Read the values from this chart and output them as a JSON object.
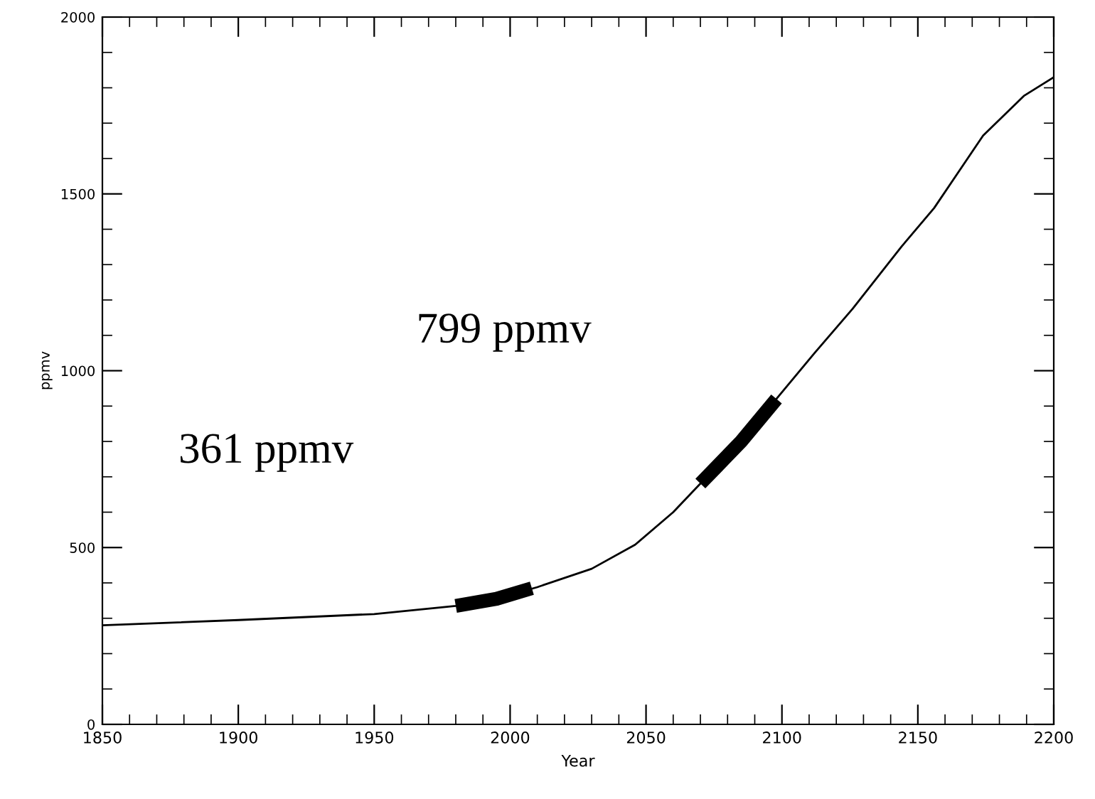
{
  "chart_data": {
    "type": "line",
    "xlabel": "Year",
    "ylabel": "ppmv",
    "xlim": [
      1850,
      2200
    ],
    "xticks": [
      1850,
      1900,
      1950,
      2000,
      2050,
      2100,
      2150,
      2200
    ],
    "ylim": [
      0,
      2000
    ],
    "yticks": [
      0,
      500,
      1000,
      1500,
      2000
    ],
    "series": [
      {
        "color": "#000000",
        "x": [
          1850,
          1900,
          1950,
          1980,
          1995,
          2010,
          2030,
          2046,
          2060,
          2070,
          2085,
          2099,
          2112,
          2126,
          2144,
          2156,
          2174,
          2189,
          2200
        ],
        "values": [
          280,
          295,
          312,
          335,
          355,
          388,
          440,
          508,
          600,
          681,
          800,
          930,
          1050,
          1175,
          1351,
          1460,
          1665,
          1777,
          1830
        ]
      },
      {
        "color": "#000000",
        "x": [
          1980,
          1995,
          2008
        ],
        "values": [
          335,
          355,
          385
        ]
      },
      {
        "color": "#000000",
        "x": [
          2070,
          2085,
          2098
        ],
        "values": [
          681,
          800,
          920
        ]
      }
    ],
    "annotations": [
      "361 ppmv",
      "799 ppmv"
    ],
    "grid": false,
    "legend": false
  }
}
